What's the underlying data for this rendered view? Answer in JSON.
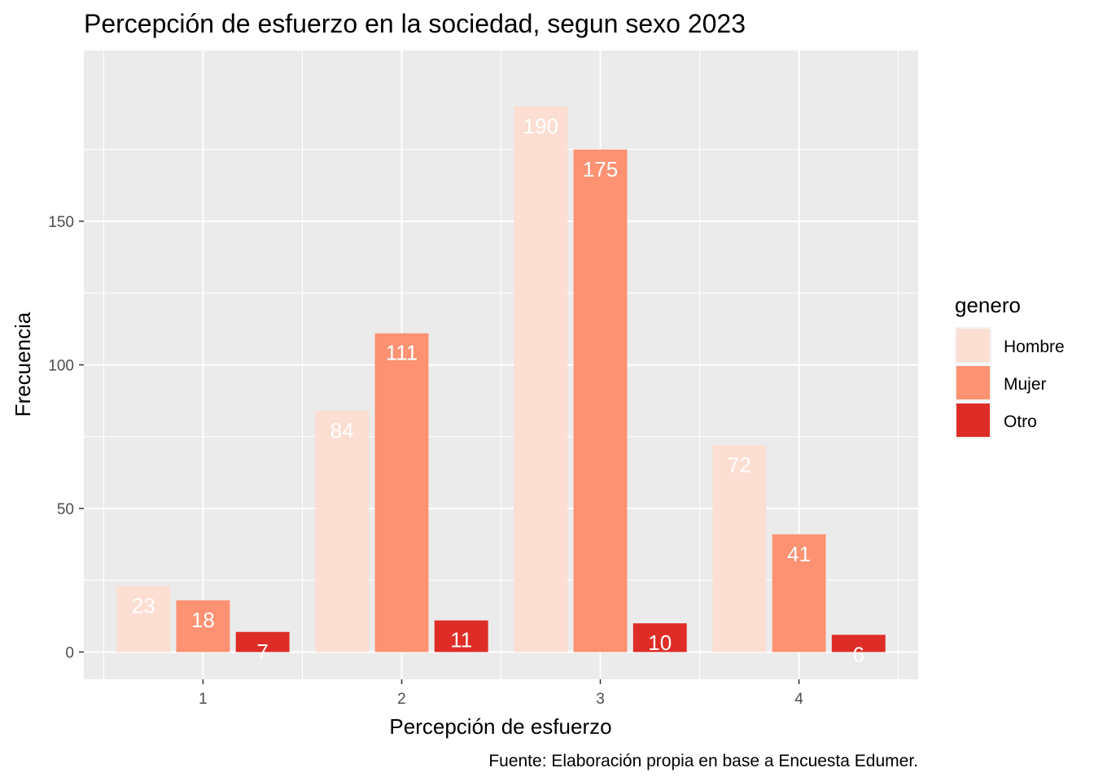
{
  "chart_data": {
    "type": "bar",
    "title": "Percepción de esfuerzo en la sociedad, segun sexo 2023",
    "xlabel": "Percepción de esfuerzo",
    "ylabel": "Frecuencia",
    "caption": "Fuente: Elaboración propia en base a Encuesta Edumer.",
    "categories": [
      "1",
      "2",
      "3",
      "4"
    ],
    "y_ticks": [
      "0",
      "50",
      "100",
      "150"
    ],
    "ylim": [
      -9.5,
      209.5
    ],
    "grid": true,
    "legend": {
      "title": "genero",
      "position": "right"
    },
    "series": [
      {
        "name": "Hombre",
        "color": "#FCDED3",
        "values": [
          23,
          84,
          190,
          72
        ]
      },
      {
        "name": "Mujer",
        "color": "#FC9272",
        "values": [
          18,
          111,
          175,
          41
        ]
      },
      {
        "name": "Otro",
        "color": "#DE2D26",
        "values": [
          7,
          11,
          10,
          6
        ]
      }
    ]
  }
}
